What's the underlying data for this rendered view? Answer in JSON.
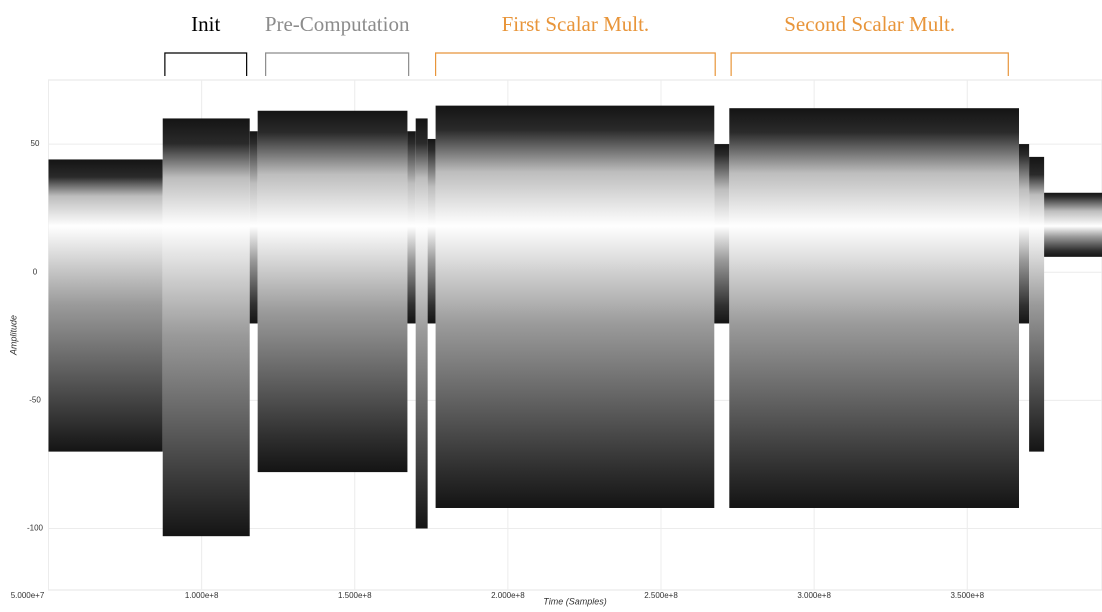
{
  "chart_data": {
    "type": "band",
    "x_label": "Time (Samples)",
    "y_label": "Amplitude",
    "xlim": [
      50000000,
      394000000
    ],
    "ylim": [
      -124,
      75
    ],
    "xticks": [
      {
        "value": 50000000,
        "label": "5.000e+7"
      },
      {
        "value": 100000000,
        "label": "1.000e+8"
      },
      {
        "value": 150000000,
        "label": "1.500e+8"
      },
      {
        "value": 200000000,
        "label": "2.000e+8"
      },
      {
        "value": 250000000,
        "label": "2.500e+8"
      },
      {
        "value": 300000000,
        "label": "3.000e+8"
      },
      {
        "value": 350000000,
        "label": "3.500e+8"
      }
    ],
    "yticks": [
      50,
      0,
      -50,
      -100
    ],
    "grid": true,
    "center": 18,
    "color": "#141414",
    "x": [
      50000000,
      87300000,
      115700000,
      118300000,
      167200000,
      169900000,
      173800000,
      176400000,
      267400000,
      272300000,
      366900000,
      370200000,
      375100000
    ],
    "upper": [
      44,
      60,
      55,
      63,
      55,
      60,
      52,
      65,
      50,
      64,
      50,
      45,
      31
    ],
    "lower": [
      -70,
      -103,
      -20,
      -78,
      -20,
      -100,
      -20,
      -92,
      -20,
      -92,
      -20,
      -70,
      6
    ],
    "annotations": [
      {
        "text": "Init",
        "x": [
          88000000,
          114700000
        ],
        "color": "#000000"
      },
      {
        "text": "Pre-Computation",
        "x": [
          120900000,
          167600000
        ],
        "color": "#8c8c8c"
      },
      {
        "text": "First Scalar Mult.",
        "x": [
          176400000,
          267700000
        ],
        "color": "#e8953a"
      },
      {
        "text": "Second Scalar Mult.",
        "x": [
          272900000,
          363400000
        ],
        "color": "#e8953a"
      }
    ]
  }
}
